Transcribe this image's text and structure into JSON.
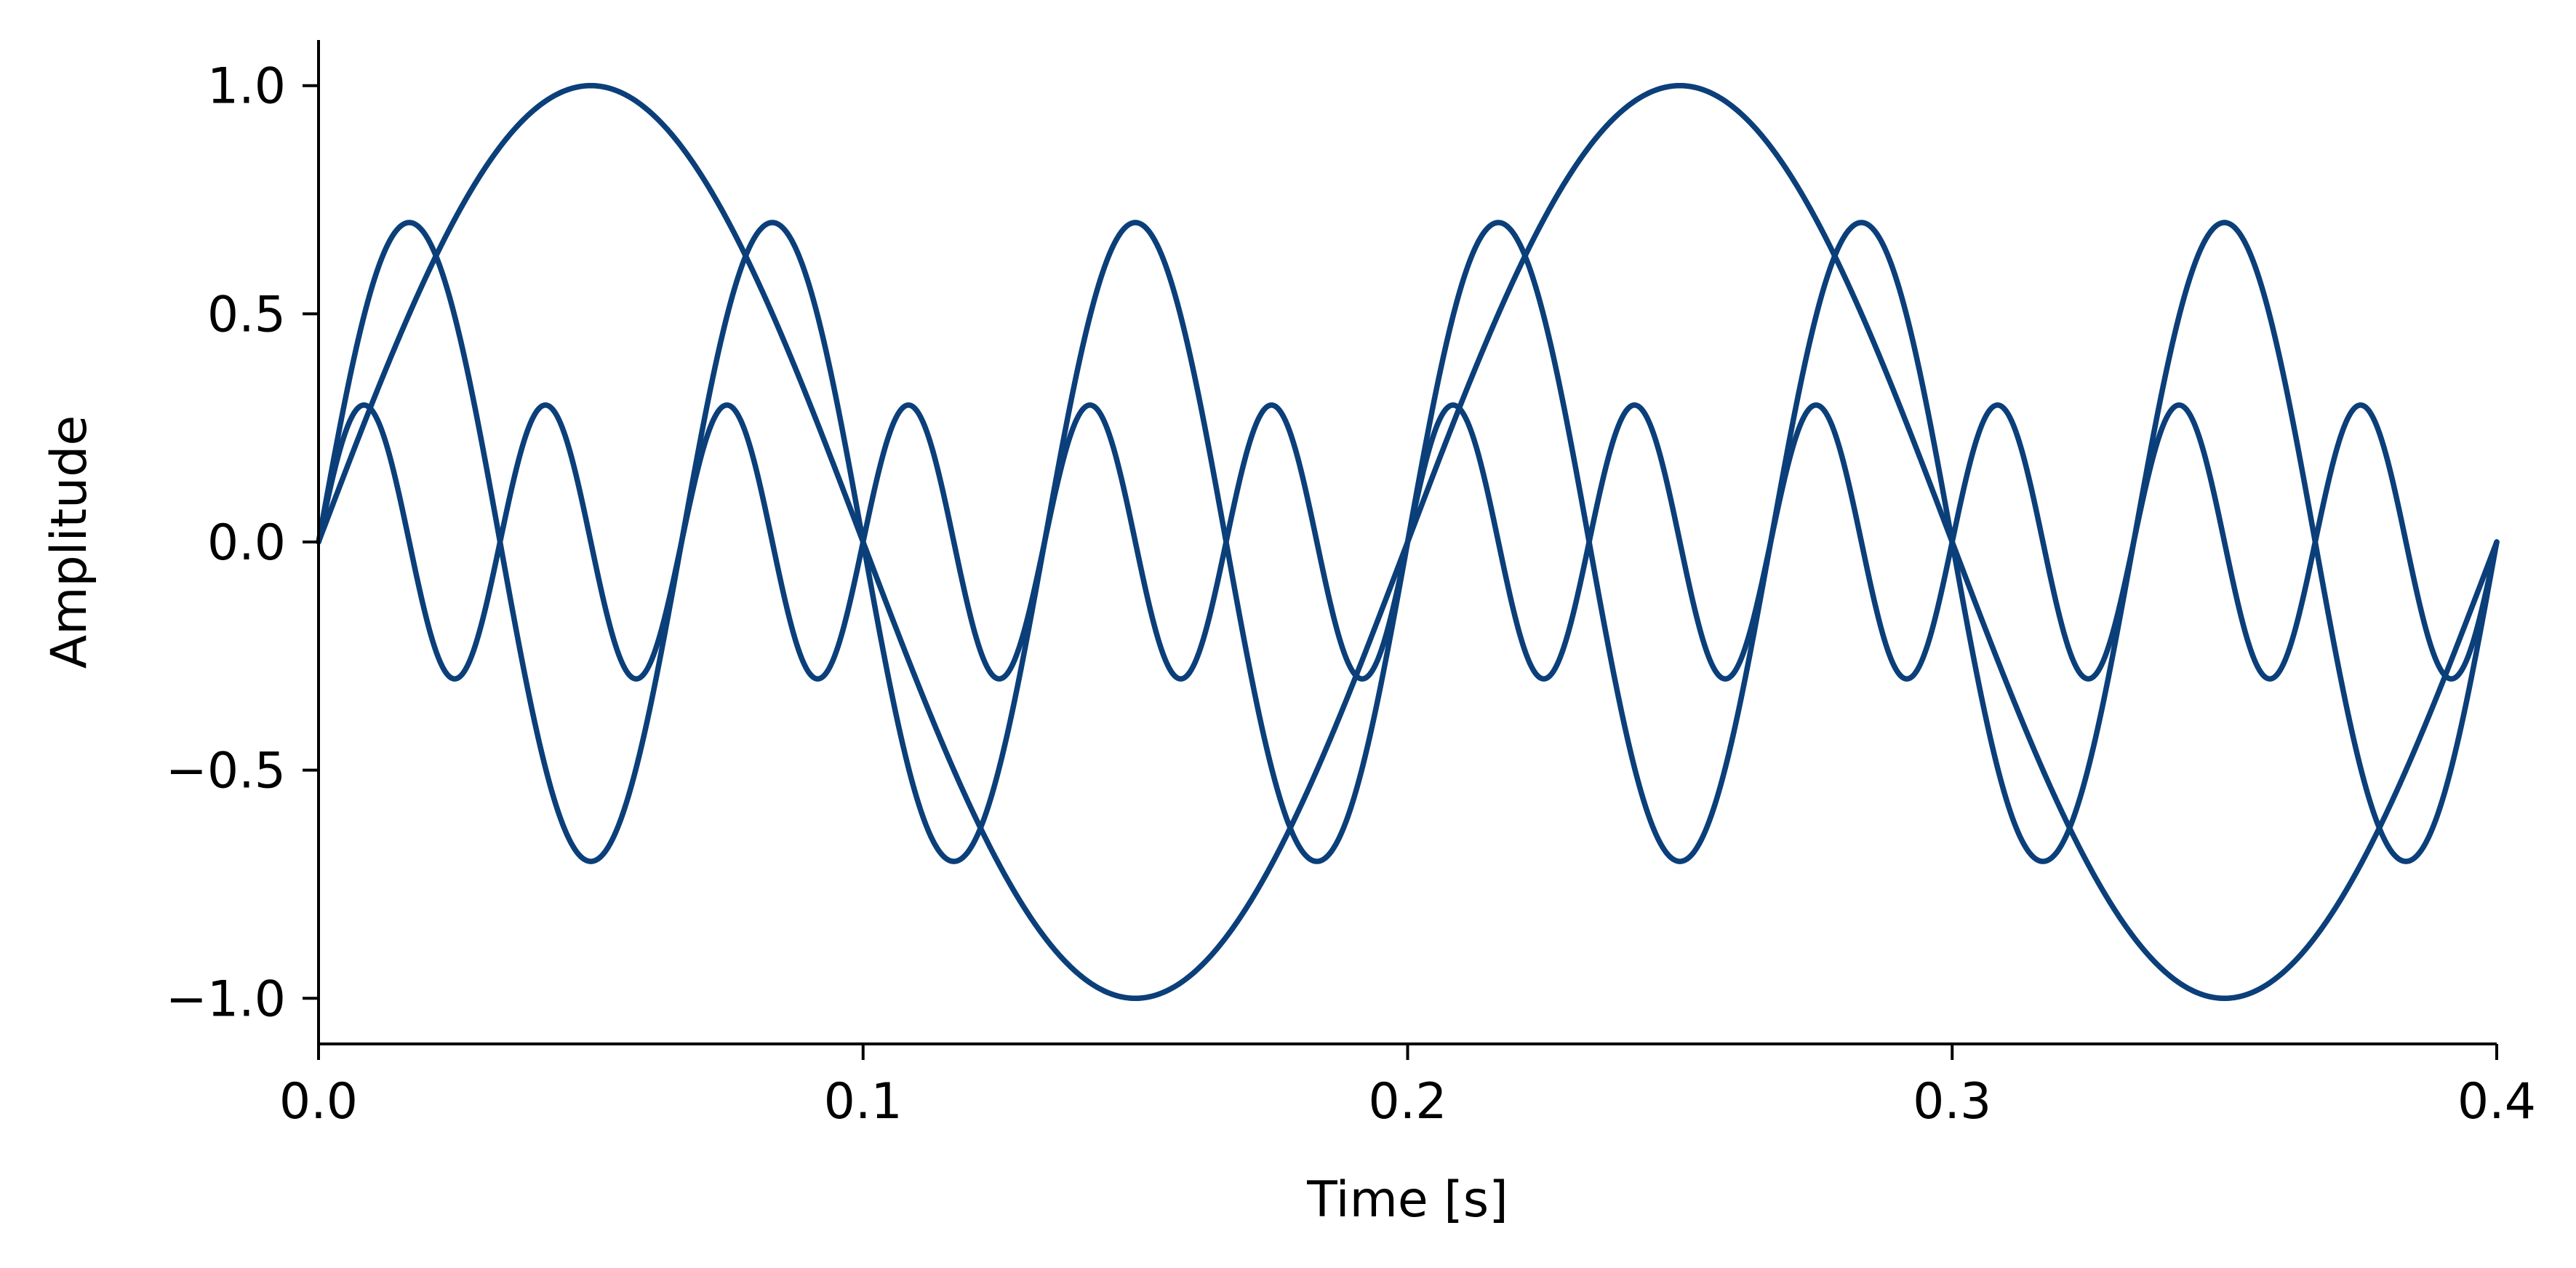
{
  "chart_data": {
    "type": "line",
    "title": "",
    "xlabel": "Time [s]",
    "ylabel": "Amplitude",
    "xlim": [
      0.0,
      0.4
    ],
    "ylim": [
      -1.1,
      1.1
    ],
    "grid": false,
    "x_ticks": [
      {
        "value": 0.0,
        "label": "0.0"
      },
      {
        "value": 0.1,
        "label": "0.1"
      },
      {
        "value": 0.2,
        "label": "0.2"
      },
      {
        "value": 0.3,
        "label": "0.3"
      },
      {
        "value": 0.4,
        "label": "0.4"
      }
    ],
    "y_ticks": [
      {
        "value": -1.0,
        "label": "−1.0"
      },
      {
        "value": -0.5,
        "label": "−0.5"
      },
      {
        "value": 0.0,
        "label": "0.0"
      },
      {
        "value": 0.5,
        "label": "0.5"
      },
      {
        "value": 1.0,
        "label": "1.0"
      }
    ],
    "series": [
      {
        "amplitude": 1.0,
        "frequency_hz": 5,
        "color": "#0b3f7a",
        "x_start": 0.0,
        "x_end": 0.4
      },
      {
        "amplitude": 0.7,
        "frequency_hz": 15,
        "color": "#0b3f7a",
        "x_start": 0.0,
        "x_end": 0.4
      },
      {
        "amplitude": 0.3,
        "frequency_hz": 30,
        "color": "#0b3f7a",
        "x_start": 0.0,
        "x_end": 0.4
      }
    ]
  }
}
